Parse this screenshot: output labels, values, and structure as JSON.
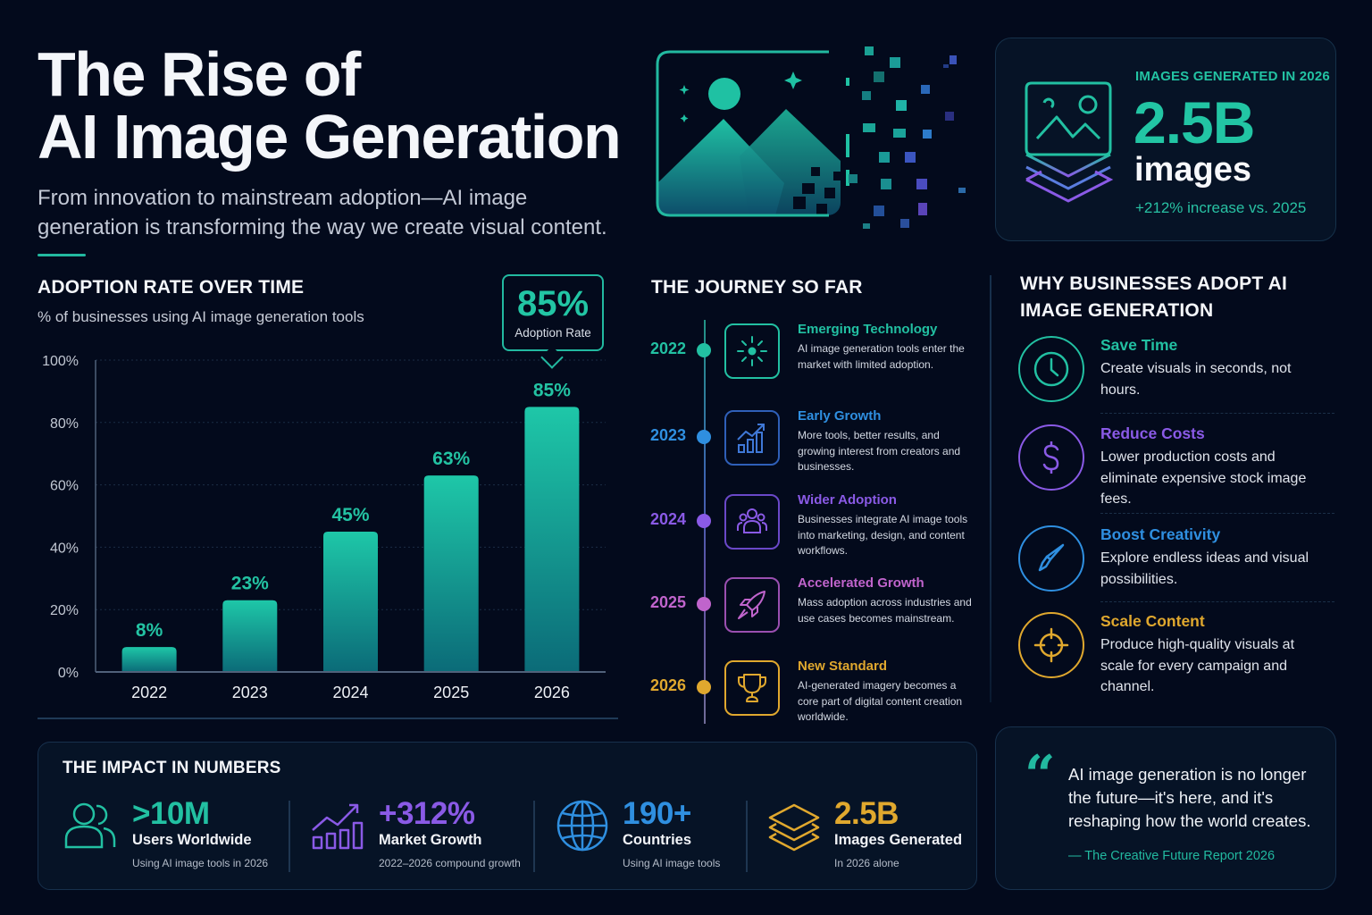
{
  "header": {
    "title_line1": "The Rise of",
    "title_line2": "AI Image Generation",
    "subtitle": "From innovation to mainstream adoption—AI image generation is transforming the way we create visual content."
  },
  "hero_stat": {
    "label": "IMAGES GENERATED IN 2026",
    "value": "2.5B",
    "unit": "images",
    "change": "+212% increase vs. 2025",
    "icon": "stacked-image-icon"
  },
  "chart_section": {
    "heading": "ADOPTION RATE OVER TIME",
    "subheading": "% of businesses using AI image generation tools",
    "callout": {
      "value": "85%",
      "label": "Adoption Rate"
    }
  },
  "chart_data": {
    "type": "bar",
    "title": "ADOPTION RATE OVER TIME",
    "subtitle": "% of businesses using AI image generation tools",
    "xlabel": "",
    "ylabel": "",
    "categories": [
      "2022",
      "2023",
      "2024",
      "2025",
      "2026"
    ],
    "values": [
      8,
      23,
      45,
      63,
      85
    ],
    "data_labels": [
      "8%",
      "23%",
      "45%",
      "63%",
      "85%"
    ],
    "ylim": [
      0,
      100
    ],
    "yticks": [
      0,
      20,
      40,
      60,
      80,
      100
    ],
    "ytick_labels": [
      "0%",
      "20%",
      "40%",
      "60%",
      "80%",
      "100%"
    ],
    "grid": true,
    "legend": "none",
    "annotation": {
      "category": "2026",
      "text": "85% Adoption Rate"
    },
    "colors": {
      "bar_top": "#1ec7a8",
      "bar_bottom": "#0b6b78",
      "label": "#23c3a3"
    }
  },
  "timeline": {
    "heading": "THE JOURNEY SO FAR",
    "items": [
      {
        "year": "2022",
        "title": "Emerging Technology",
        "desc": "AI image generation tools enter the market with limited adoption.",
        "color": "#22c0a2",
        "icon": "sparkle-icon"
      },
      {
        "year": "2023",
        "title": "Early Growth",
        "desc": "More tools, better results, and growing interest from creators and businesses.",
        "color": "#2f8fe0",
        "icon": "growth-chart-icon"
      },
      {
        "year": "2024",
        "title": "Wider Adoption",
        "desc": "Businesses integrate AI image tools into marketing, design, and content workflows.",
        "color": "#8a5ae6",
        "icon": "team-icon"
      },
      {
        "year": "2025",
        "title": "Accelerated Growth",
        "desc": "Mass adoption across industries and use cases becomes mainstream.",
        "color": "#c064cc",
        "icon": "rocket-icon"
      },
      {
        "year": "2026",
        "title": "New Standard",
        "desc": "AI-generated imagery becomes a core part of digital content creation worldwide.",
        "color": "#e0a82e",
        "icon": "trophy-icon"
      }
    ]
  },
  "why": {
    "heading": "WHY BUSINESSES ADOPT AI IMAGE GENERATION",
    "items": [
      {
        "title": "Save Time",
        "desc": "Create visuals in seconds, not hours.",
        "color": "#22c0a2",
        "icon": "clock-icon"
      },
      {
        "title": "Reduce Costs",
        "desc": "Lower production costs and eliminate expensive stock image fees.",
        "color": "#8a5ae6",
        "icon": "dollar-icon"
      },
      {
        "title": "Boost Creativity",
        "desc": "Explore endless ideas and visual possibilities.",
        "color": "#2f8fe0",
        "icon": "paintbrush-icon"
      },
      {
        "title": "Scale Content",
        "desc": "Produce high-quality visuals at scale for every campaign and channel.",
        "color": "#e0a82e",
        "icon": "crosshair-icon"
      }
    ]
  },
  "impact": {
    "heading": "THE IMPACT IN NUMBERS",
    "metrics": [
      {
        "value": ">10M",
        "label": "Users Worldwide",
        "sub": "Using AI image tools in 2026",
        "color": "#22c0a2",
        "icon": "users-icon"
      },
      {
        "value": "+312%",
        "label": "Market Growth",
        "sub": "2022–2026 compound growth",
        "color": "#8a5ae6",
        "icon": "market-growth-icon"
      },
      {
        "value": "190+",
        "label": "Countries",
        "sub": "Using AI image tools",
        "color": "#2f8fe0",
        "icon": "globe-icon"
      },
      {
        "value": "2.5B",
        "label": "Images Generated",
        "sub": "In 2026 alone",
        "color": "#e0a82e",
        "icon": "layers-icon"
      }
    ]
  },
  "quote": {
    "text": "AI image generation is no longer the future—it's here, and it's reshaping how the world creates.",
    "source": "— The Creative Future Report 2026"
  },
  "theme": {
    "background": "#030a1c",
    "accent": "#22c0a2"
  }
}
